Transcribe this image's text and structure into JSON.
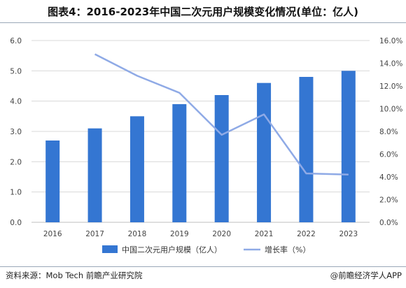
{
  "title": "图表4：2016-2023年中国二次元用户规模变化情况(单位：亿人)",
  "footer": {
    "source": "资料来源：Mob Tech 前瞻产业研究院",
    "brand": "@前瞻经济学人APP"
  },
  "colors": {
    "bar": "#3476d2",
    "line": "#8faae6",
    "grid": "#d8d8d8"
  },
  "chart_data": {
    "type": "bar",
    "categories": [
      "2016",
      "2017",
      "2018",
      "2019",
      "2020",
      "2021",
      "2022",
      "2023"
    ],
    "series": [
      {
        "name": "中国二次元用户规模（亿人）",
        "type": "bar",
        "axis": "left",
        "values": [
          2.7,
          3.1,
          3.5,
          3.9,
          4.2,
          4.6,
          4.8,
          5.0
        ]
      },
      {
        "name": "增长率（%）",
        "type": "line",
        "axis": "right",
        "values": [
          null,
          14.8,
          12.9,
          11.4,
          7.7,
          9.5,
          4.3,
          4.2
        ]
      }
    ],
    "y_left": {
      "min": 0,
      "max": 6,
      "ticks": [
        "0.0",
        "1.0",
        "2.0",
        "3.0",
        "4.0",
        "5.0",
        "6.0"
      ]
    },
    "y_right": {
      "min": 0,
      "max": 16,
      "ticks": [
        "0.0%",
        "2.0%",
        "4.0%",
        "6.0%",
        "8.0%",
        "10.0%",
        "12.0%",
        "14.0%",
        "16.0%"
      ]
    },
    "grid": true,
    "legend_position": "bottom"
  }
}
